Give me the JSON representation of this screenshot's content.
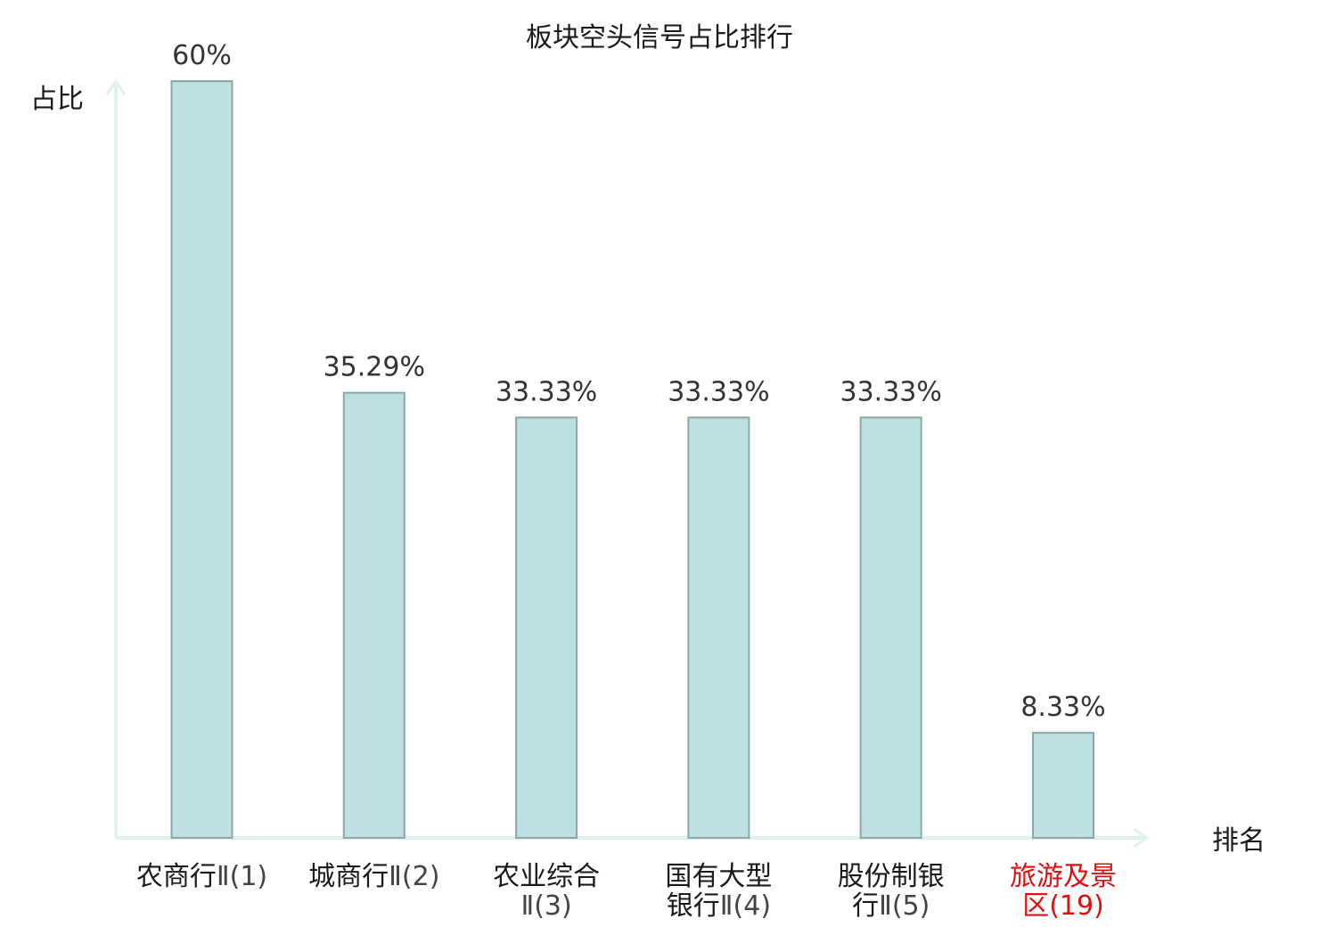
{
  "chart_data": {
    "type": "bar",
    "title": "板块空头信号占比排行",
    "ylabel": "占比",
    "xlabel": "排名",
    "ylim": [
      0,
      60
    ],
    "categories": [
      {
        "lines": [
          {
            "main": "农商行",
            "suffix": "Ⅱ(1)"
          }
        ],
        "highlight": false
      },
      {
        "lines": [
          {
            "main": "城商行",
            "suffix": "Ⅱ(2)"
          }
        ],
        "highlight": false
      },
      {
        "lines": [
          {
            "main": "农业综合",
            "suffix": ""
          },
          {
            "main": "",
            "suffix": "Ⅱ(3)"
          }
        ],
        "highlight": false
      },
      {
        "lines": [
          {
            "main": "国有大型",
            "suffix": ""
          },
          {
            "main": "银行",
            "suffix": "Ⅱ(4)"
          }
        ],
        "highlight": false
      },
      {
        "lines": [
          {
            "main": "股份制银",
            "suffix": ""
          },
          {
            "main": "行",
            "suffix": "Ⅱ(5)"
          }
        ],
        "highlight": false
      },
      {
        "lines": [
          {
            "main": "旅游及景",
            "suffix": ""
          },
          {
            "main": "区",
            "suffix": "(19)"
          }
        ],
        "highlight": true
      }
    ],
    "values": [
      60,
      35.29,
      33.33,
      33.33,
      33.33,
      8.33
    ],
    "value_labels": [
      "60%",
      "35.29%",
      "33.33%",
      "33.33%",
      "33.33%",
      "8.33%"
    ],
    "grid": false,
    "colors": {
      "bar_fill": "#bde0e2",
      "bar_stroke": "#8aa7a9",
      "axis": "#e0f2ef",
      "label": "#1a1a1a",
      "label_suffix": "#444444",
      "highlight": "#e01010"
    }
  }
}
